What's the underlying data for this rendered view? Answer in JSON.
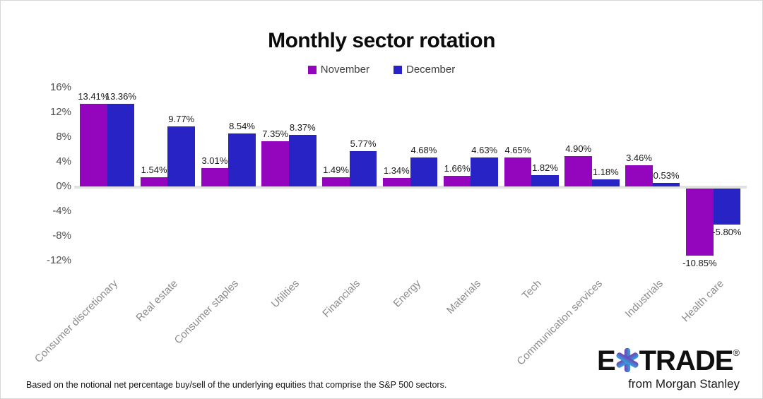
{
  "header": {
    "title": "Monthly sector rotation"
  },
  "legend": [
    {
      "label": "November",
      "color": "#9406BD"
    },
    {
      "label": "December",
      "color": "#2823C4"
    }
  ],
  "chart_data": {
    "type": "bar",
    "title": "Monthly sector rotation",
    "categories": [
      "Consumer discretionary",
      "Real estate",
      "Consumer staples",
      "Utilities",
      "Financials",
      "Energy",
      "Materials",
      "Tech",
      "Communication services",
      "Industrials",
      "Health care"
    ],
    "series": [
      {
        "name": "November",
        "color": "#9406BD",
        "values": [
          13.41,
          1.54,
          3.01,
          7.35,
          1.49,
          1.34,
          1.66,
          4.65,
          4.9,
          3.46,
          -10.85
        ],
        "labels": [
          "13.41%",
          "1.54%",
          "3.01%",
          "7.35%",
          "1.49%",
          "1.34%",
          "1.66%",
          "4.65%",
          "4.90%",
          "3.46%",
          "-10.85%"
        ]
      },
      {
        "name": "December",
        "color": "#2823C4",
        "values": [
          13.36,
          9.77,
          8.54,
          8.37,
          5.77,
          4.68,
          4.63,
          1.82,
          1.18,
          0.53,
          -5.8
        ],
        "labels": [
          "13.36%",
          "9.77%",
          "8.54%",
          "8.37%",
          "5.77%",
          "4.68%",
          "4.63%",
          "1.82%",
          "1.18%",
          "0.53%",
          "-5.80%"
        ]
      }
    ],
    "y_ticks": [
      {
        "value": 16,
        "label": "16%"
      },
      {
        "value": 12,
        "label": "12%"
      },
      {
        "value": 8,
        "label": "8%"
      },
      {
        "value": 4,
        "label": "4%"
      },
      {
        "value": 0,
        "label": "0%"
      },
      {
        "value": -4,
        "label": "-4%"
      },
      {
        "value": -8,
        "label": "-8%"
      },
      {
        "value": -12,
        "label": "-12%"
      }
    ],
    "ylim": [
      -12,
      16
    ],
    "grid": false,
    "legend_position": "top",
    "baseline_color": "#e1e1e1"
  },
  "footer": {
    "disclaimer": "Based on the notional net percentage buy/sell of the underlying equities that comprise the S&P 500 sectors.",
    "logo": {
      "e": "E",
      "trade": "TRADE",
      "reg": "®",
      "tagline": "from Morgan Stanley",
      "star_color_left": "#7D2EAE",
      "star_color_right": "#2CA8E0"
    }
  }
}
